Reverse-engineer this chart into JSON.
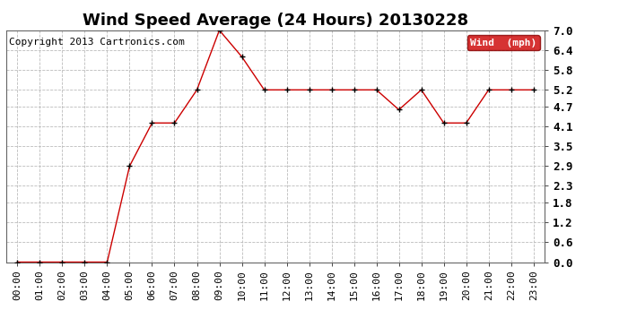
{
  "title": "Wind Speed Average (24 Hours) 20130228",
  "copyright_text": "Copyright 2013 Cartronics.com",
  "legend_label": "Wind  (mph)",
  "legend_bg": "#cc0000",
  "legend_text_color": "#ffffff",
  "x_labels": [
    "00:00",
    "01:00",
    "02:00",
    "03:00",
    "04:00",
    "05:00",
    "06:00",
    "07:00",
    "08:00",
    "09:00",
    "10:00",
    "11:00",
    "12:00",
    "13:00",
    "14:00",
    "15:00",
    "16:00",
    "17:00",
    "18:00",
    "19:00",
    "20:00",
    "21:00",
    "22:00",
    "23:00"
  ],
  "y_values": [
    0.0,
    0.0,
    0.0,
    0.0,
    0.0,
    2.9,
    4.2,
    4.2,
    5.2,
    7.0,
    6.2,
    5.2,
    5.2,
    5.2,
    5.2,
    5.2,
    5.2,
    4.6,
    5.2,
    4.2,
    4.2,
    5.2,
    5.2,
    5.2
  ],
  "y_ticks": [
    0.0,
    0.6,
    1.2,
    1.8,
    2.3,
    2.9,
    3.5,
    4.1,
    4.7,
    5.2,
    5.8,
    6.4,
    7.0
  ],
  "ylim": [
    0.0,
    7.0
  ],
  "line_color": "#cc0000",
  "marker": "+",
  "marker_color": "#000000",
  "grid_color": "#bbbbbb",
  "bg_color": "#ffffff",
  "plot_bg_color": "#ffffff",
  "title_fontsize": 13,
  "copyright_fontsize": 8,
  "tick_fontsize": 8,
  "ytick_fontsize": 9
}
